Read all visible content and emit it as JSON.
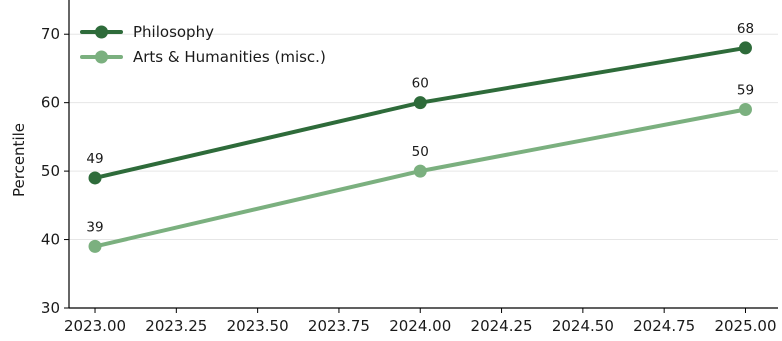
{
  "chart_data": {
    "type": "line",
    "title": "",
    "xlabel": "",
    "ylabel": "Percentile",
    "x": [
      2023,
      2024,
      2025
    ],
    "xlim": [
      2022.92,
      2025.1
    ],
    "ylim": [
      30,
      75
    ],
    "x_ticks": [
      2023.0,
      2023.25,
      2023.5,
      2023.75,
      2024.0,
      2024.25,
      2024.5,
      2024.75,
      2025.0
    ],
    "x_tick_labels": [
      "2023.00",
      "2023.25",
      "2023.50",
      "2023.75",
      "2024.00",
      "2024.25",
      "2024.50",
      "2024.75",
      "2025.00"
    ],
    "y_ticks": [
      30,
      40,
      50,
      60,
      70
    ],
    "y_tick_labels": [
      "30",
      "40",
      "50",
      "60",
      "70"
    ],
    "grid": "horizontal",
    "legend_position": "top-left",
    "series": [
      {
        "name": "Philosophy",
        "values": [
          49,
          60,
          68
        ],
        "labels": [
          "49",
          "60",
          "68"
        ],
        "color": "#2e6b3a"
      },
      {
        "name": "Arts & Humanities (misc.)",
        "values": [
          39,
          50,
          59
        ],
        "labels": [
          "39",
          "50",
          "59"
        ],
        "color": "#7bb07f"
      }
    ]
  }
}
